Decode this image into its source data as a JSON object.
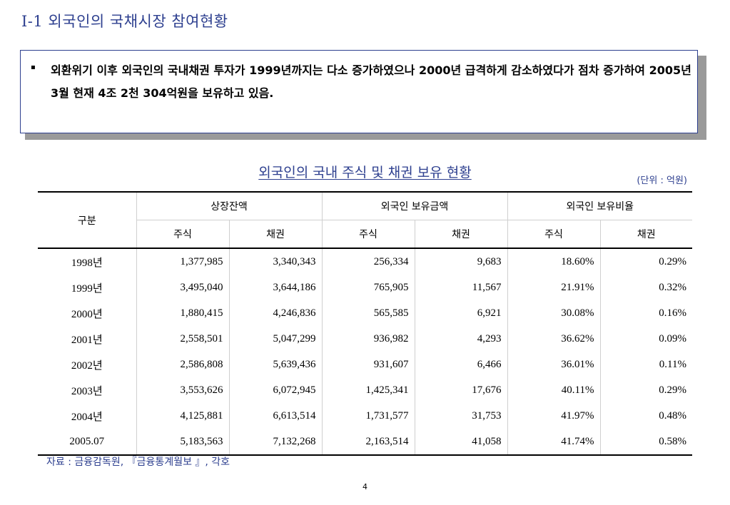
{
  "title": "I-1 외국인의 국채시장 참여현황",
  "summary": {
    "bullet": "▪",
    "text": "외환위기 이후 외국인의 국내채권 투자가 1999년까지는 다소 증가하였으나 2000년 급격하게 감소하였다가 점차 증가하여 2005년 3월 현재  4조 2천 304억원을 보유하고 있음."
  },
  "table": {
    "title": "외국인의 국내 주식 및 채권 보유 현황",
    "unit": "(단위 : 억원)",
    "header": {
      "category": "구분",
      "groups": [
        "상장잔액",
        "외국인 보유금액",
        "외국인 보유비율"
      ],
      "sub": [
        "주식",
        "채권",
        "주식",
        "채권",
        "주식",
        "채권"
      ]
    },
    "rows": [
      [
        "1998년",
        "1,377,985",
        "3,340,343",
        "256,334",
        "9,683",
        "18.60%",
        "0.29%"
      ],
      [
        "1999년",
        "3,495,040",
        "3,644,186",
        "765,905",
        "11,567",
        "21.91%",
        "0.32%"
      ],
      [
        "2000년",
        "1,880,415",
        "4,246,836",
        "565,585",
        "6,921",
        "30.08%",
        "0.16%"
      ],
      [
        "2001년",
        "2,558,501",
        "5,047,299",
        "936,982",
        "4,293",
        "36.62%",
        "0.09%"
      ],
      [
        "2002년",
        "2,586,808",
        "5,639,436",
        "931,607",
        "6,466",
        "36.01%",
        "0.11%"
      ],
      [
        "2003년",
        "3,553,626",
        "6,072,945",
        "1,425,341",
        "17,676",
        "40.11%",
        "0.29%"
      ],
      [
        "2004년",
        "4,125,881",
        "6,613,514",
        "1,731,577",
        "31,753",
        "41.97%",
        "0.48%"
      ],
      [
        "2005.07",
        "5,183,563",
        "7,132,268",
        "2,163,514",
        "41,058",
        "41.74%",
        "0.58%"
      ]
    ]
  },
  "source": "자료 : 금융감독원, 『금융통계월보 』, 각호",
  "page_number": "4"
}
